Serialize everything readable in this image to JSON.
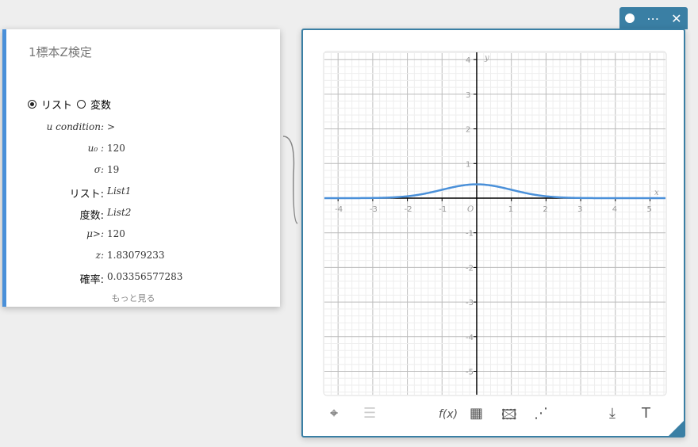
{
  "panel": {
    "title": "1標本Z検定",
    "radio_list": "リスト",
    "radio_var": "変数",
    "selected": "list",
    "rows": [
      {
        "label": "u condition:",
        "value": ">",
        "lstyle": "it",
        "vstyle": ""
      },
      {
        "label": "u₀ :",
        "value": "120",
        "lstyle": "it",
        "vstyle": ""
      },
      {
        "label": "σ:",
        "value": "19",
        "lstyle": "it",
        "vstyle": ""
      },
      {
        "label": "リスト:",
        "value": "List1",
        "lstyle": "jp",
        "vstyle": "it"
      },
      {
        "label": "度数:",
        "value": "List2",
        "lstyle": "jp",
        "vstyle": "it"
      },
      {
        "label": "μ>:",
        "value": "120",
        "lstyle": "it",
        "vstyle": ""
      },
      {
        "label": "z:",
        "value": "1.83079233",
        "lstyle": "it",
        "vstyle": ""
      },
      {
        "label": "確率:",
        "value": "0.03356577283",
        "lstyle": "jp",
        "vstyle": ""
      }
    ],
    "more": "もっと見る"
  },
  "window": {
    "menu": "⋯",
    "close": "✕"
  },
  "chart_data": {
    "type": "line",
    "xlabel": "x",
    "ylabel": "y",
    "origin_label": "O",
    "xlim": [
      -4.4,
      5.5
    ],
    "ylim": [
      -5.7,
      4.2
    ],
    "xticks": [
      -4,
      -3,
      -2,
      -1,
      1,
      2,
      3,
      4,
      5
    ],
    "yticks": [
      4,
      3,
      2,
      1,
      -1,
      -2,
      -3,
      -4,
      -5
    ],
    "series": [
      {
        "function": "normal pdf",
        "mean": 0,
        "sd": 1,
        "color": "#4a90d9"
      }
    ],
    "grid": true
  },
  "toolbar": {
    "tools": [
      {
        "name": "crosshair-icon",
        "glyph": "⌖"
      },
      {
        "name": "list-icon",
        "glyph": "☰"
      },
      {
        "name": "function-icon",
        "glyph": "f(x)"
      },
      {
        "name": "table-icon",
        "glyph": "▦"
      },
      {
        "name": "image-icon",
        "glyph": "🖾"
      },
      {
        "name": "scatter-icon",
        "glyph": "⋰"
      },
      {
        "name": "download-icon",
        "glyph": "⤓"
      },
      {
        "name": "text-icon",
        "glyph": "T"
      }
    ]
  }
}
